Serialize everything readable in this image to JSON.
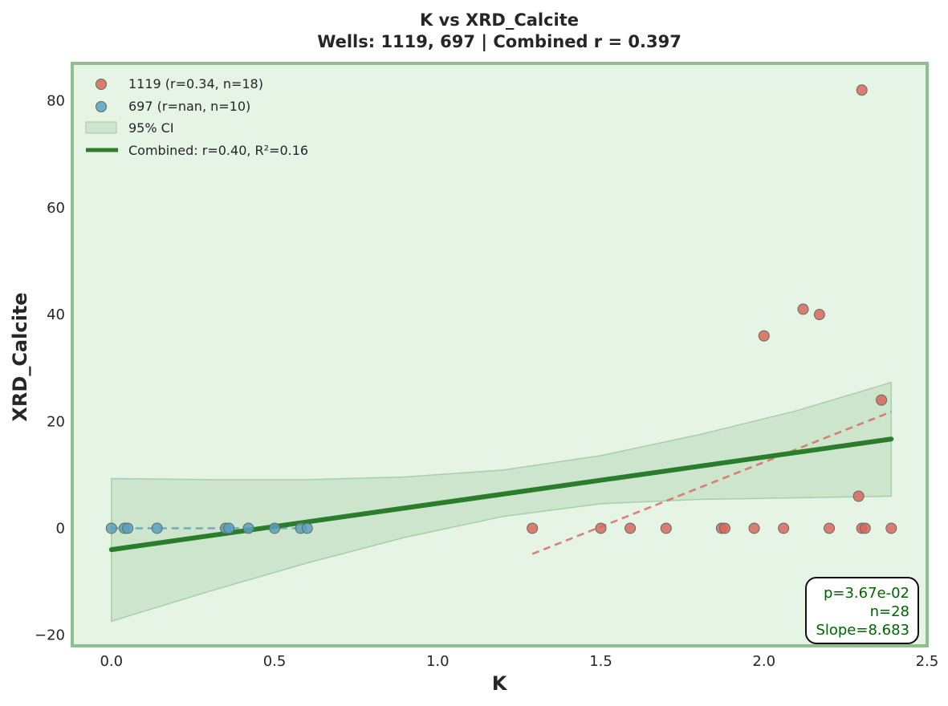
{
  "chart_data": {
    "type": "scatter",
    "title": "K vs XRD_Calcite",
    "subtitle": "Wells: 1119, 697 | Combined r = 0.397",
    "xlabel": "K",
    "ylabel": "XRD_Calcite",
    "xlim": [
      -0.12,
      2.5
    ],
    "ylim": [
      -22,
      87
    ],
    "xticks": [
      0.0,
      0.5,
      1.0,
      1.5,
      2.0,
      2.5
    ],
    "xtick_labels": [
      "0.0",
      "0.5",
      "1.0",
      "1.5",
      "2.0",
      "2.5"
    ],
    "yticks": [
      -20,
      0,
      20,
      40,
      60,
      80
    ],
    "ytick_labels": [
      "−20",
      "0",
      "20",
      "40",
      "60",
      "80"
    ],
    "grid": false,
    "legend_position": "top-left",
    "colors": {
      "plot_bg": "#e6f4e6",
      "frame": "#8fbf8f",
      "well_1119": "#d9655a",
      "well_697": "#5aa0c0",
      "ci_fill": "#b6d9b6",
      "combined_line": "#2a7d2a",
      "stats_text": "#006400"
    },
    "series": [
      {
        "name": "1119 (r=0.34, n=18)",
        "color": "#d9655a",
        "x": [
          2.3,
          2.12,
          2.17,
          2.0,
          2.36,
          2.29,
          1.29,
          1.5,
          1.59,
          1.7,
          1.87,
          1.88,
          1.97,
          2.06,
          2.2,
          2.3,
          2.31,
          2.39
        ],
        "y": [
          82,
          41,
          40,
          36,
          24,
          6,
          0,
          0,
          0,
          0,
          0,
          0,
          0,
          0,
          0,
          0,
          0,
          0
        ],
        "fit": {
          "x": [
            1.29,
            2.39
          ],
          "y": [
            -4.8,
            21.8
          ]
        }
      },
      {
        "name": "697 (r=nan, n=10)",
        "color": "#5aa0c0",
        "x": [
          0.0,
          0.04,
          0.05,
          0.14,
          0.35,
          0.36,
          0.42,
          0.5,
          0.58,
          0.6
        ],
        "y": [
          0,
          0,
          0,
          0,
          0,
          0,
          0,
          0,
          0,
          0
        ],
        "fit": {
          "x": [
            0.0,
            0.6
          ],
          "y": [
            0,
            0
          ]
        }
      }
    ],
    "ci": {
      "name": "95% CI",
      "x": [
        0.0,
        0.3,
        0.6,
        0.9,
        1.2,
        1.5,
        1.8,
        2.1,
        2.39
      ],
      "lower": [
        -17.4,
        -11.8,
        -6.5,
        -1.7,
        2.2,
        4.6,
        5.4,
        5.7,
        6.0
      ],
      "upper": [
        9.3,
        9.1,
        9.1,
        9.6,
        10.9,
        13.6,
        17.5,
        22.0,
        27.3
      ]
    },
    "combined": {
      "name": "Combined: r=0.40, R²=0.16",
      "x": [
        0.0,
        2.39
      ],
      "y": [
        -4.0,
        16.7
      ]
    },
    "stats_box": {
      "p": "p=3.67e-02",
      "n": "n=28",
      "slope": "Slope=8.683"
    }
  }
}
